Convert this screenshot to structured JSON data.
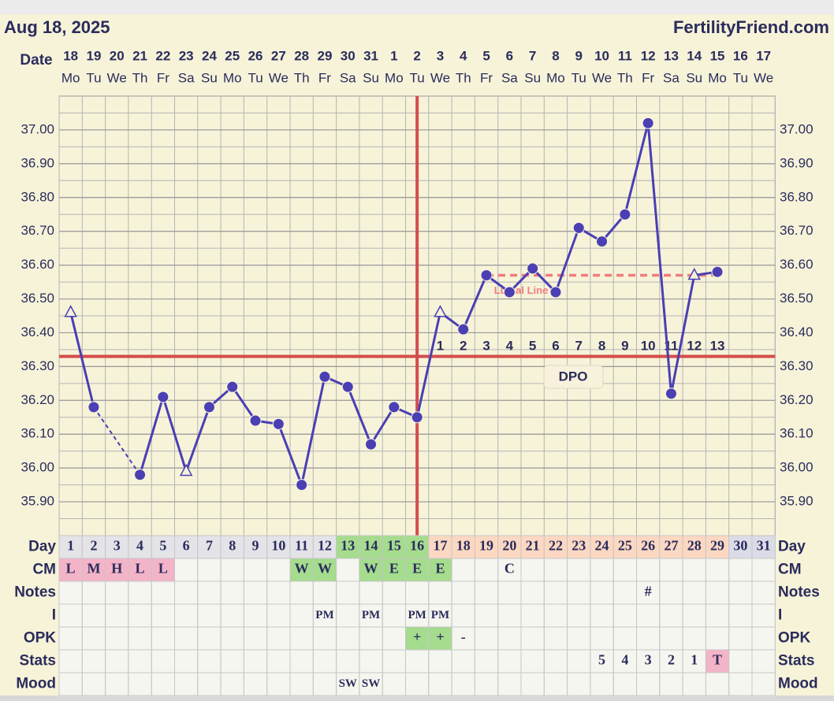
{
  "header": {
    "date": "Aug 18, 2025",
    "site": "FertilityFriend.com",
    "date_label": "Date"
  },
  "chart_data": {
    "type": "line",
    "categories": [
      "18",
      "19",
      "20",
      "21",
      "22",
      "23",
      "24",
      "25",
      "26",
      "27",
      "28",
      "29",
      "30",
      "31",
      "1",
      "2",
      "3",
      "4",
      "5",
      "6",
      "7",
      "8",
      "9",
      "10",
      "11",
      "12",
      "13",
      "14",
      "15",
      "16",
      "17"
    ],
    "weekdays": [
      "Mo",
      "Tu",
      "We",
      "Th",
      "Fr",
      "Sa",
      "Su",
      "Mo",
      "Tu",
      "We",
      "Th",
      "Fr",
      "Sa",
      "Su",
      "Mo",
      "Tu",
      "We",
      "Th",
      "Fr",
      "Sa",
      "Su",
      "Mo",
      "Tu",
      "We",
      "Th",
      "Fr",
      "Sa",
      "Su",
      "Mo",
      "Tu",
      "We"
    ],
    "series": [
      {
        "color": "#4a3fb3",
        "values": [
          36.46,
          36.18,
          null,
          35.98,
          36.21,
          35.99,
          36.18,
          36.24,
          36.14,
          36.13,
          35.95,
          36.27,
          36.24,
          36.07,
          36.18,
          36.15,
          36.46,
          36.41,
          36.57,
          36.52,
          36.59,
          36.52,
          36.71,
          36.67,
          36.75,
          37.02,
          36.22,
          36.57,
          36.58,
          null,
          null
        ],
        "markers": [
          "triangle",
          "circle",
          null,
          "circle",
          "circle",
          "triangle",
          "circle",
          "circle",
          "circle",
          "circle",
          "circle",
          "circle",
          "circle",
          "circle",
          "circle",
          "circle",
          "triangle",
          "circle",
          "circle",
          "circle",
          "circle",
          "circle",
          "circle",
          "circle",
          "circle",
          "circle",
          "circle",
          "triangle",
          "circle",
          null,
          null
        ]
      }
    ],
    "ylim": [
      35.8,
      37.1
    ],
    "yticks": [
      {
        "value": 35.9,
        "label": "35.90"
      },
      {
        "value": 36.0,
        "label": "36.00"
      },
      {
        "value": 36.1,
        "label": "36.10"
      },
      {
        "value": 36.2,
        "label": "36.20"
      },
      {
        "value": 36.3,
        "label": "36.30"
      },
      {
        "value": 36.4,
        "label": "36.40"
      },
      {
        "value": 36.5,
        "label": "36.50"
      },
      {
        "value": 36.6,
        "label": "36.60"
      },
      {
        "value": 36.7,
        "label": "36.70"
      },
      {
        "value": 36.8,
        "label": "36.80"
      },
      {
        "value": 36.9,
        "label": "36.90"
      },
      {
        "value": 37.0,
        "label": "37.00"
      }
    ],
    "grid": true,
    "coverline": {
      "value": 36.33,
      "color": "#d44c4c"
    },
    "ovulation_day": 16,
    "luteal_line": {
      "label": "Luteal Line",
      "value": 36.57,
      "from_day": 19,
      "to_day": 29,
      "color": "#f07c7c"
    },
    "dpo": [
      null,
      null,
      null,
      null,
      null,
      null,
      null,
      null,
      null,
      null,
      null,
      null,
      null,
      null,
      null,
      null,
      1,
      2,
      3,
      4,
      5,
      6,
      7,
      8,
      9,
      10,
      11,
      12,
      13,
      null,
      null
    ],
    "dpo_label": "DPO"
  },
  "table": {
    "rows": [
      {
        "label": "Day",
        "cells": [
          1,
          2,
          3,
          4,
          5,
          6,
          7,
          8,
          9,
          10,
          11,
          12,
          13,
          14,
          15,
          16,
          17,
          18,
          19,
          20,
          21,
          22,
          23,
          24,
          25,
          26,
          27,
          28,
          29,
          30,
          31
        ],
        "colors": [
          "#e3e3e8",
          "#e3e3e8",
          "#e3e3e8",
          "#e3e3e8",
          "#e3e3e8",
          "#e3e3e8",
          "#e3e3e8",
          "#e3e3e8",
          "#e3e3e8",
          "#e3e3e8",
          "#e3e3e8",
          "#e3e3e8",
          "#a5dc8e",
          "#a5dc8e",
          "#a5dc8e",
          "#a5dc8e",
          "#fcd8c2",
          "#fcd8c2",
          "#fcd8c2",
          "#fcd8c2",
          "#fcd8c2",
          "#fcd8c2",
          "#fcd8c2",
          "#fcd8c2",
          "#fcd8c2",
          "#fcd8c2",
          "#fcd8c2",
          "#fcd8c2",
          "#fcd8c2",
          "#dcdce8",
          "#dcdce8"
        ]
      },
      {
        "label": "CM",
        "cells": [
          "L",
          "M",
          "H",
          "L",
          "L",
          null,
          null,
          null,
          null,
          null,
          "W",
          "W",
          null,
          "W",
          "E",
          "E",
          "E",
          null,
          null,
          "C",
          null,
          null,
          null,
          null,
          null,
          null,
          null,
          null,
          null,
          null,
          null
        ],
        "colors": [
          "#f4b4c8",
          "#f4b4c8",
          "#f4b4c8",
          "#f4b4c8",
          "#f4b4c8",
          null,
          null,
          null,
          null,
          null,
          "#a5dc8e",
          "#a5dc8e",
          null,
          "#a5dc8e",
          "#a5dc8e",
          "#a5dc8e",
          "#a5dc8e",
          null,
          null,
          null,
          null,
          null,
          null,
          null,
          null,
          null,
          null,
          null,
          null,
          null,
          null
        ]
      },
      {
        "label": "Notes",
        "cells": [
          null,
          null,
          null,
          null,
          null,
          null,
          null,
          null,
          null,
          null,
          null,
          null,
          null,
          null,
          null,
          null,
          null,
          null,
          null,
          null,
          null,
          null,
          null,
          null,
          null,
          "#",
          null,
          null,
          null,
          null,
          null
        ]
      },
      {
        "label": "I",
        "cells": [
          null,
          null,
          null,
          null,
          null,
          null,
          null,
          null,
          null,
          null,
          null,
          "PM",
          null,
          "PM",
          null,
          "PM",
          "PM",
          null,
          null,
          null,
          null,
          null,
          null,
          null,
          null,
          null,
          null,
          null,
          null,
          null,
          null
        ]
      },
      {
        "label": "OPK",
        "cells": [
          null,
          null,
          null,
          null,
          null,
          null,
          null,
          null,
          null,
          null,
          null,
          null,
          null,
          null,
          null,
          "+",
          "+",
          "-",
          null,
          null,
          null,
          null,
          null,
          null,
          null,
          null,
          null,
          null,
          null,
          null,
          null
        ],
        "colors": [
          null,
          null,
          null,
          null,
          null,
          null,
          null,
          null,
          null,
          null,
          null,
          null,
          null,
          null,
          null,
          "#a5dc8e",
          "#a5dc8e",
          null,
          null,
          null,
          null,
          null,
          null,
          null,
          null,
          null,
          null,
          null,
          null,
          null,
          null
        ]
      },
      {
        "label": "Stats",
        "cells": [
          null,
          null,
          null,
          null,
          null,
          null,
          null,
          null,
          null,
          null,
          null,
          null,
          null,
          null,
          null,
          null,
          null,
          null,
          null,
          null,
          null,
          null,
          null,
          5,
          4,
          3,
          2,
          1,
          "T",
          null,
          null
        ],
        "colors": [
          null,
          null,
          null,
          null,
          null,
          null,
          null,
          null,
          null,
          null,
          null,
          null,
          null,
          null,
          null,
          null,
          null,
          null,
          null,
          null,
          null,
          null,
          null,
          null,
          null,
          null,
          null,
          null,
          "#f4b4c8",
          null,
          null
        ]
      },
      {
        "label": "Mood",
        "cells": [
          null,
          null,
          null,
          null,
          null,
          null,
          null,
          null,
          null,
          null,
          null,
          null,
          "SW",
          "SW",
          null,
          null,
          null,
          null,
          null,
          null,
          null,
          null,
          null,
          null,
          null,
          null,
          null,
          null,
          null,
          null,
          null
        ]
      }
    ]
  }
}
